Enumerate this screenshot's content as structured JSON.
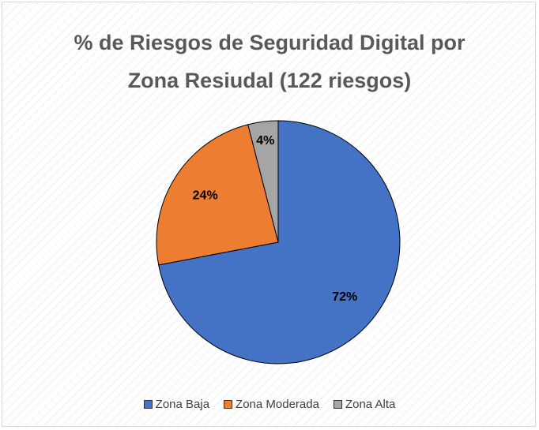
{
  "chart_data": {
    "type": "pie",
    "title": "% de Riesgos de Seguridad Digital por Zona Resiudal (122 riesgos)",
    "categories": [
      "Zona Baja",
      "Zona Moderada",
      "Zona Alta"
    ],
    "values": [
      72,
      24,
      4
    ],
    "value_labels": [
      "72%",
      "24%",
      "4%"
    ],
    "colors": [
      "#4472c4",
      "#ed7d31",
      "#a5a5a5"
    ],
    "legend": "bottom"
  }
}
